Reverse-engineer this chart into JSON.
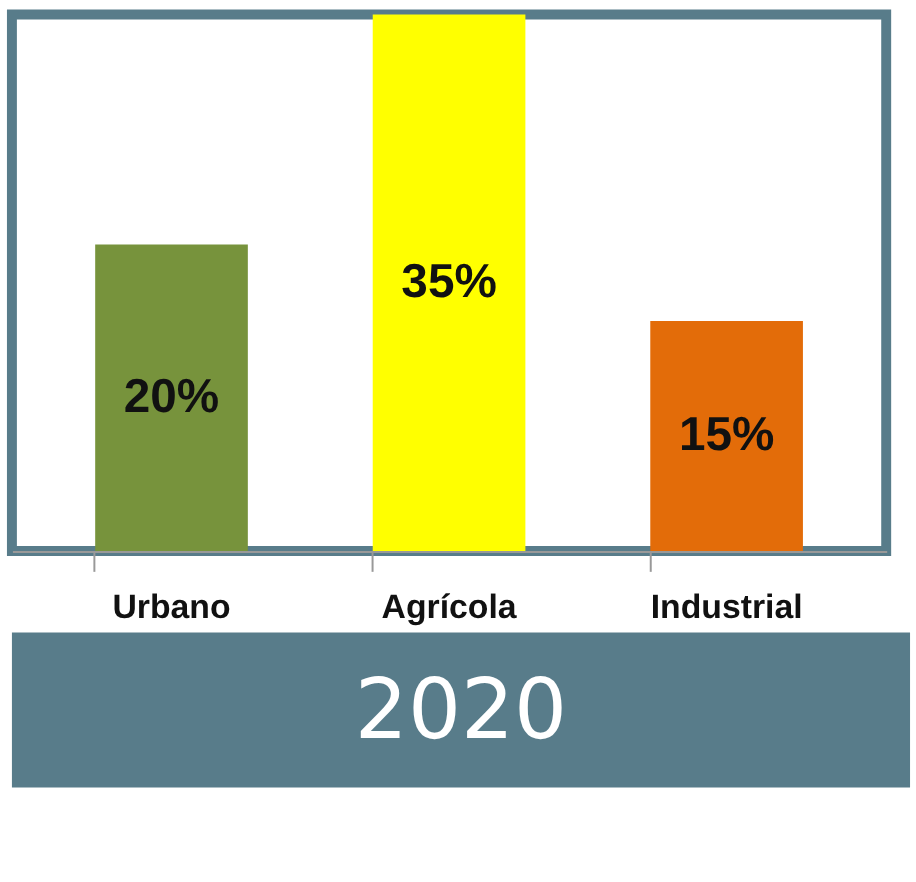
{
  "chart_data": {
    "type": "bar",
    "title": "2020",
    "categories": [
      "Urbano",
      "Agrícola",
      "Industrial"
    ],
    "values": [
      20,
      35,
      15
    ],
    "colors": [
      "#77933c",
      "#ffff00",
      "#e36c09"
    ],
    "value_labels": [
      "20%",
      "35%",
      "15%"
    ],
    "grid": false,
    "legend": false
  }
}
